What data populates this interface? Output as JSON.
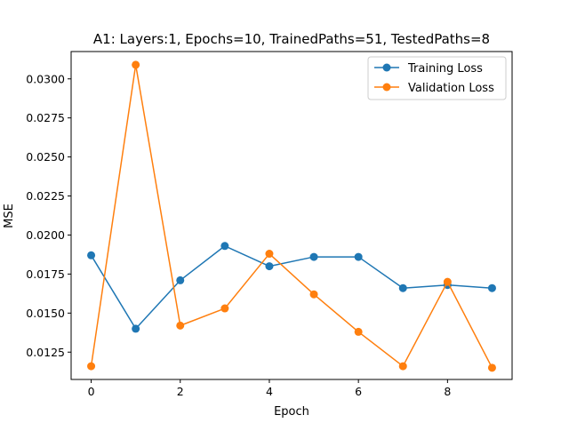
{
  "chart_data": {
    "type": "line",
    "title": "A1: Layers:1, Epochs=10, TrainedPaths=51, TestedPaths=8",
    "xlabel": "Epoch",
    "ylabel": "MSE",
    "xlim": [
      -0.45,
      9.45
    ],
    "ylim": [
      0.01075,
      0.03175
    ],
    "x": [
      0,
      1,
      2,
      3,
      4,
      5,
      6,
      7,
      8,
      9
    ],
    "xticks": [
      "0",
      "2",
      "4",
      "6",
      "8"
    ],
    "xtick_values": [
      0,
      2,
      4,
      6,
      8
    ],
    "yticks": [
      "0.0125",
      "0.0150",
      "0.0175",
      "0.0200",
      "0.0225",
      "0.0250",
      "0.0275",
      "0.0300"
    ],
    "ytick_values": [
      0.0125,
      0.015,
      0.0175,
      0.02,
      0.0225,
      0.025,
      0.0275,
      0.03
    ],
    "grid": false,
    "legend_position": "top-right",
    "series": [
      {
        "name": "Training Loss",
        "color": "#1f77b4",
        "values": [
          0.0187,
          0.014,
          0.0171,
          0.0193,
          0.018,
          0.0186,
          0.0186,
          0.0166,
          0.0168,
          0.0166
        ]
      },
      {
        "name": "Validation Loss",
        "color": "#ff7f0e",
        "values": [
          0.0116,
          0.0309,
          0.0142,
          0.0153,
          0.0188,
          0.0162,
          0.0138,
          0.0116,
          0.017,
          0.0115
        ]
      }
    ]
  }
}
